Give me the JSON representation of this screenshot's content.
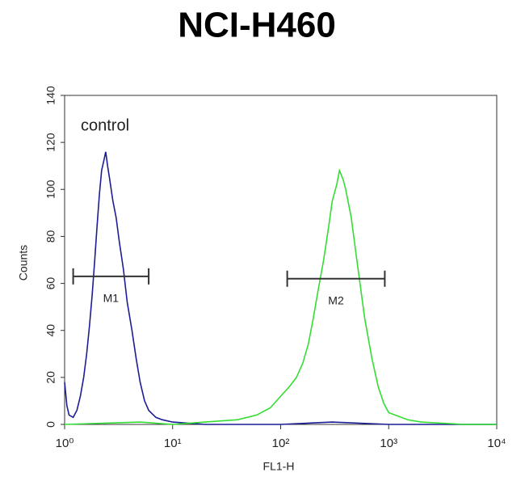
{
  "chart_data": {
    "type": "line",
    "title": "NCI-H460",
    "xlabel": "FL1-H",
    "ylabel": "Counts",
    "xscale": "log",
    "xlim": [
      1,
      10000
    ],
    "xticks": [
      {
        "value": 1,
        "label": "10⁰"
      },
      {
        "value": 10,
        "label": "10¹"
      },
      {
        "value": 100,
        "label": "10²"
      },
      {
        "value": 1000,
        "label": "10³"
      },
      {
        "value": 10000,
        "label": "10⁴"
      }
    ],
    "ylim": [
      0,
      140
    ],
    "yticks": [
      0,
      20,
      40,
      60,
      80,
      100,
      120,
      140
    ],
    "series": [
      {
        "name": "control",
        "color": "#1c1c96",
        "x": [
          1,
          1.05,
          1.1,
          1.2,
          1.3,
          1.4,
          1.5,
          1.6,
          1.7,
          1.8,
          1.9,
          2.0,
          2.1,
          2.2,
          2.3,
          2.4,
          2.5,
          2.6,
          2.8,
          3.0,
          3.2,
          3.5,
          3.8,
          4.2,
          4.6,
          5.0,
          5.5,
          6.0,
          7,
          8,
          10,
          20,
          100,
          300,
          1000,
          10000
        ],
        "values": [
          18,
          8,
          4,
          3,
          6,
          12,
          20,
          30,
          42,
          55,
          70,
          85,
          98,
          108,
          112,
          116,
          110,
          105,
          95,
          88,
          78,
          66,
          52,
          40,
          28,
          18,
          10,
          6,
          3,
          2,
          1,
          0,
          0,
          1,
          0,
          0
        ]
      },
      {
        "color": "#33dd33",
        "x": [
          1,
          5,
          10,
          20,
          40,
          60,
          80,
          100,
          120,
          140,
          160,
          180,
          200,
          220,
          250,
          280,
          300,
          330,
          350,
          380,
          400,
          450,
          500,
          550,
          600,
          700,
          800,
          900,
          1000,
          1500,
          2000,
          5000,
          10000
        ],
        "values": [
          0,
          1,
          0,
          1,
          2,
          4,
          7,
          12,
          16,
          20,
          26,
          34,
          45,
          56,
          70,
          85,
          95,
          102,
          108,
          104,
          100,
          88,
          72,
          58,
          45,
          28,
          16,
          9,
          5,
          2,
          1,
          0,
          0
        ]
      }
    ],
    "markers": [
      {
        "label": "M1",
        "range": [
          1.2,
          6.0
        ],
        "y": 63
      },
      {
        "label": "M2",
        "range": [
          115,
          920
        ],
        "y": 62
      }
    ]
  }
}
